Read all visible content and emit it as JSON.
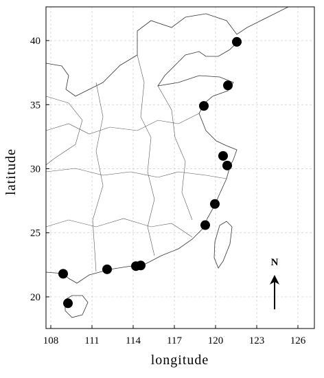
{
  "chart_data": {
    "type": "scatter",
    "x_label": "longitude",
    "y_label": "latitude",
    "x": [
      121.55,
      120.9,
      119.15,
      120.55,
      120.85,
      119.95,
      119.25,
      108.9,
      109.25,
      112.1,
      114.2,
      114.55
    ],
    "values": [
      39.9,
      36.5,
      34.9,
      31.0,
      30.25,
      27.25,
      25.6,
      21.8,
      19.5,
      22.15,
      22.4,
      22.45
    ],
    "color": "#000000",
    "xlim": [
      107.65,
      127.2
    ],
    "ylim": [
      17.53,
      42.63
    ],
    "xticks": [
      108,
      111,
      114,
      117,
      120,
      123,
      126
    ],
    "yticks": [
      20,
      25,
      30,
      35,
      40
    ],
    "grid": true,
    "north_label": "N"
  }
}
